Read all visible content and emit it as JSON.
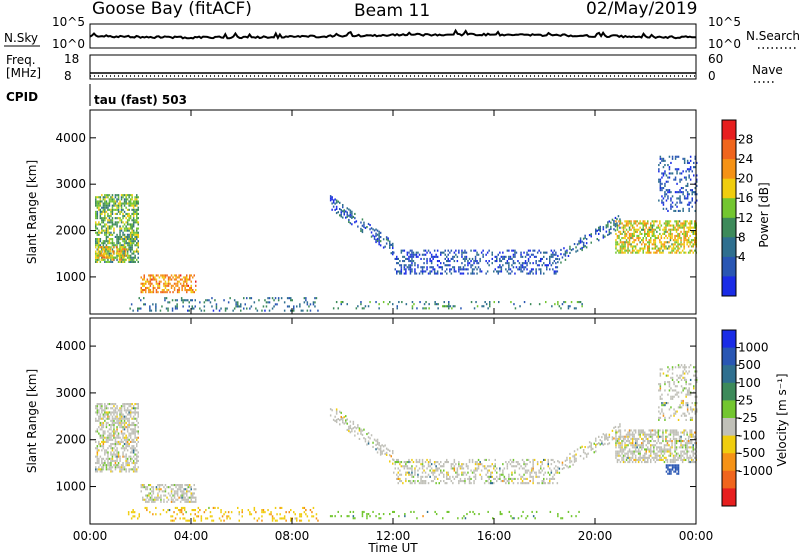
{
  "header": {
    "station": "Goose Bay (fitACF)",
    "beam": "Beam 11",
    "date": "02/May/2019"
  },
  "top_panels": {
    "nsky_label": "N.Sky",
    "nsky_ticks": [
      "10^5",
      "10^0"
    ],
    "nsearch_label": "N.Search",
    "nsearch_ticks": [
      "10^5",
      "10^0"
    ],
    "freq_label_line1": "Freq.",
    "freq_label_line2": "[MHz]",
    "freq_ticks": [
      "18",
      "8"
    ],
    "nave_label": "Nave",
    "nave_ticks": [
      "60",
      "0"
    ],
    "cpid_label": "CPID",
    "cpid_text": "tau (fast) 503"
  },
  "colors": {
    "power": [
      "#1a2ce6",
      "#2956b3",
      "#2f6f8f",
      "#3d8a5a",
      "#73c630",
      "#f0cd0e",
      "#f59216",
      "#f0651d",
      "#e71f1f"
    ],
    "velocity": [
      "#1a2ce6",
      "#2956b3",
      "#2f6f8f",
      "#3d8a5a",
      "#73c630",
      "#c0c0b8",
      "#f0cd0e",
      "#f59216",
      "#f0651d",
      "#e71f1f"
    ]
  },
  "chart_data": [
    {
      "type": "heatmap",
      "name": "power-panel",
      "ylabel": "Slant Range [km]",
      "ylim": [
        200,
        4600
      ],
      "yticks": [
        "1000",
        "2000",
        "3000",
        "4000"
      ],
      "xlim": [
        0,
        24
      ],
      "colorbar": {
        "label": "Power [dB]",
        "ticks": [
          "28",
          "24",
          "20",
          "16",
          "12",
          "8",
          "4"
        ],
        "range": [
          0,
          30
        ]
      },
      "regions": [
        {
          "t0": 0.2,
          "t1": 1.9,
          "r0": 1300,
          "r1": 2750,
          "value": 14,
          "density": 0.65
        },
        {
          "t0": 0.3,
          "t1": 1.4,
          "r0": 1350,
          "r1": 1650,
          "value": 20,
          "density": 0.5
        },
        {
          "t0": 2.0,
          "t1": 4.2,
          "r0": 650,
          "r1": 1050,
          "value": 22,
          "density": 0.55
        },
        {
          "t0": 1.5,
          "t1": 9.0,
          "r0": 250,
          "r1": 550,
          "value": 8,
          "density": 0.18
        },
        {
          "t0": 9.5,
          "t1": 19.5,
          "r0": 300,
          "r1": 450,
          "value": 10,
          "density": 0.15
        },
        {
          "t0": 9.5,
          "t1": 12.0,
          "r0": 1600,
          "r1": 2600,
          "value": 6,
          "density": 0.35,
          "track": "descending"
        },
        {
          "t0": 12.0,
          "t1": 18.5,
          "r0": 1050,
          "r1": 1550,
          "value": 5,
          "density": 0.35
        },
        {
          "t0": 18.5,
          "t1": 21.0,
          "r0": 1400,
          "r1": 2200,
          "value": 7,
          "density": 0.3,
          "track": "ascending"
        },
        {
          "t0": 20.8,
          "t1": 24.0,
          "r0": 1500,
          "r1": 2200,
          "value": 18,
          "density": 0.6
        },
        {
          "t0": 22.5,
          "t1": 24.0,
          "r0": 2400,
          "r1": 3600,
          "value": 5,
          "density": 0.25
        }
      ]
    },
    {
      "type": "heatmap",
      "name": "velocity-panel",
      "ylabel": "Slant Range [km]",
      "ylim": [
        200,
        4600
      ],
      "yticks": [
        "1000",
        "2000",
        "3000",
        "4000"
      ],
      "xlabel": "Time UT",
      "xticks": [
        "00:00",
        "04:00",
        "08:00",
        "12:00",
        "16:00",
        "20:00",
        "00:00"
      ],
      "xlim": [
        0,
        24
      ],
      "colorbar": {
        "label": "Velocity [m s⁻¹]",
        "ticks": [
          "1000",
          "500",
          "100",
          "25",
          "-25",
          "-100",
          "-500",
          "-1000"
        ],
        "range": [
          -1000,
          1000
        ]
      },
      "regions": [
        {
          "t0": 0.2,
          "t1": 1.9,
          "r0": 1300,
          "r1": 2750,
          "value": 0,
          "density": 0.6
        },
        {
          "t0": 2.0,
          "t1": 4.2,
          "r0": 650,
          "r1": 1050,
          "value": 0,
          "density": 0.5
        },
        {
          "t0": 1.5,
          "t1": 9.0,
          "r0": 250,
          "r1": 550,
          "value": -80,
          "density": 0.18
        },
        {
          "t0": 9.5,
          "t1": 19.5,
          "r0": 300,
          "r1": 450,
          "value": 60,
          "density": 0.15
        },
        {
          "t0": 9.5,
          "t1": 12.0,
          "r0": 1600,
          "r1": 2600,
          "value": 0,
          "density": 0.35,
          "track": "descending"
        },
        {
          "t0": 12.0,
          "t1": 18.5,
          "r0": 1050,
          "r1": 1550,
          "value": 0,
          "density": 0.35
        },
        {
          "t0": 18.5,
          "t1": 21.0,
          "r0": 1400,
          "r1": 2200,
          "value": 0,
          "density": 0.3,
          "track": "ascending"
        },
        {
          "t0": 20.8,
          "t1": 24.0,
          "r0": 1500,
          "r1": 2200,
          "value": 0,
          "density": 0.6
        },
        {
          "t0": 22.5,
          "t1": 24.0,
          "r0": 2400,
          "r1": 3600,
          "value": 0,
          "density": 0.25
        },
        {
          "t0": 22.8,
          "t1": 23.3,
          "r0": 1250,
          "r1": 1450,
          "value": 900,
          "density": 0.7
        }
      ]
    }
  ]
}
